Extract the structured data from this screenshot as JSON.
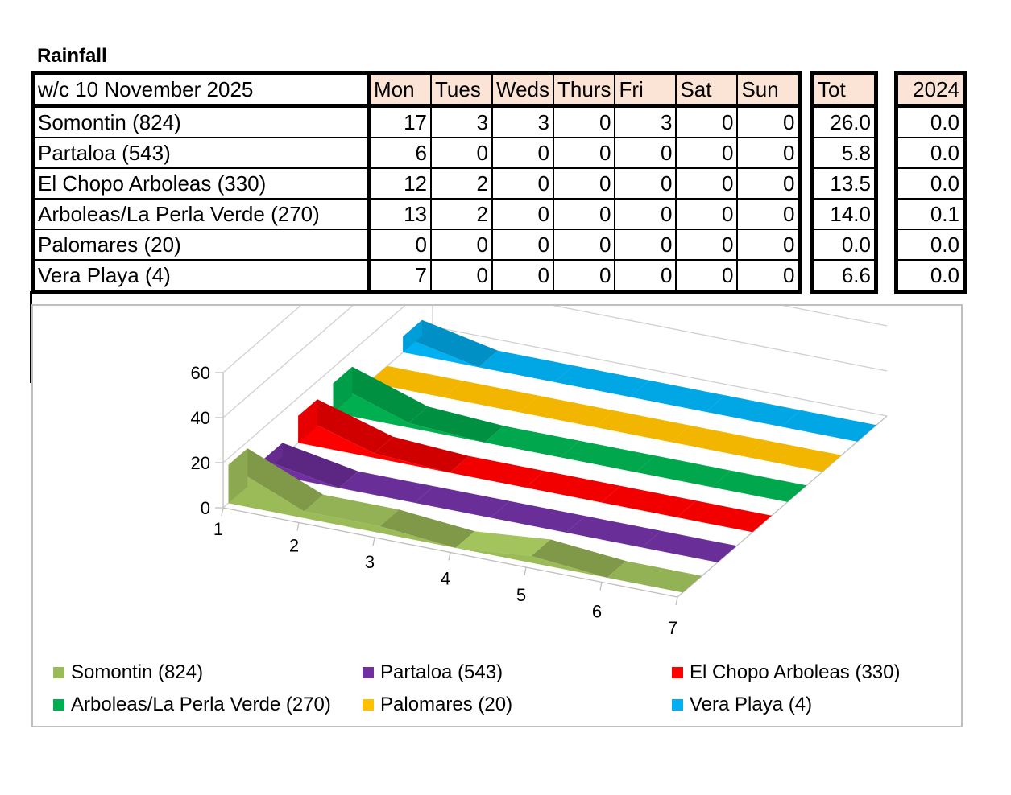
{
  "title": "Rainfall",
  "table": {
    "header_label": "w/c 10 November  2025",
    "days": [
      "Mon",
      "Tues",
      "Weds",
      "Thurs",
      "Fri",
      "Sat",
      "Sun"
    ],
    "total_header": "Tot",
    "prev_header": "2024",
    "rows": [
      {
        "name": "Somontin (824)",
        "values": [
          "17",
          "3",
          "3",
          "0",
          "3",
          "0",
          "0"
        ],
        "total": "26.0",
        "prev": "0.0"
      },
      {
        "name": "Partaloa (543)",
        "values": [
          "6",
          "0",
          "0",
          "0",
          "0",
          "0",
          "0"
        ],
        "total": "5.8",
        "prev": "0.0"
      },
      {
        "name": "El Chopo Arboleas (330)",
        "values": [
          "12",
          "2",
          "0",
          "0",
          "0",
          "0",
          "0"
        ],
        "total": "13.5",
        "prev": "0.0"
      },
      {
        "name": "Arboleas/La Perla Verde (270)",
        "values": [
          "13",
          "2",
          "0",
          "0",
          "0",
          "0",
          "0"
        ],
        "total": "14.0",
        "prev": "0.1"
      },
      {
        "name": "Palomares (20)",
        "values": [
          "0",
          "0",
          "0",
          "0",
          "0",
          "0",
          "0"
        ],
        "total": "0.0",
        "prev": "0.0"
      },
      {
        "name": "Vera Playa (4)",
        "values": [
          "7",
          "0",
          "0",
          "0",
          "0",
          "0",
          "0"
        ],
        "total": "6.6",
        "prev": "0.0"
      }
    ]
  },
  "chart_data": {
    "type": "area",
    "subtype": "3d-area",
    "categories": [
      "1",
      "2",
      "3",
      "4",
      "5",
      "6",
      "7"
    ],
    "y_ticks": [
      "0",
      "20",
      "40",
      "60"
    ],
    "ylim": [
      0,
      60
    ],
    "grid": true,
    "legend_position": "bottom",
    "series": [
      {
        "name": "Somontin (824)",
        "values": [
          17,
          3,
          3,
          0,
          3,
          0,
          0
        ],
        "color": "#9bbb59"
      },
      {
        "name": "Partaloa (543)",
        "values": [
          6,
          0,
          0,
          0,
          0,
          0,
          0
        ],
        "color": "#7030a0"
      },
      {
        "name": "El Chopo Arboleas (330)",
        "values": [
          12,
          2,
          0,
          0,
          0,
          0,
          0
        ],
        "color": "#ff0000"
      },
      {
        "name": "Arboleas/La Perla Verde (270)",
        "values": [
          13,
          2,
          0,
          0,
          0,
          0,
          0
        ],
        "color": "#00b050"
      },
      {
        "name": "Palomares (20)",
        "values": [
          0,
          0,
          0,
          0,
          0,
          0,
          0
        ],
        "color": "#ffc000"
      },
      {
        "name": "Vera Playa (4)",
        "values": [
          7,
          0,
          0,
          0,
          0,
          0,
          0
        ],
        "color": "#00b0f0"
      }
    ]
  }
}
